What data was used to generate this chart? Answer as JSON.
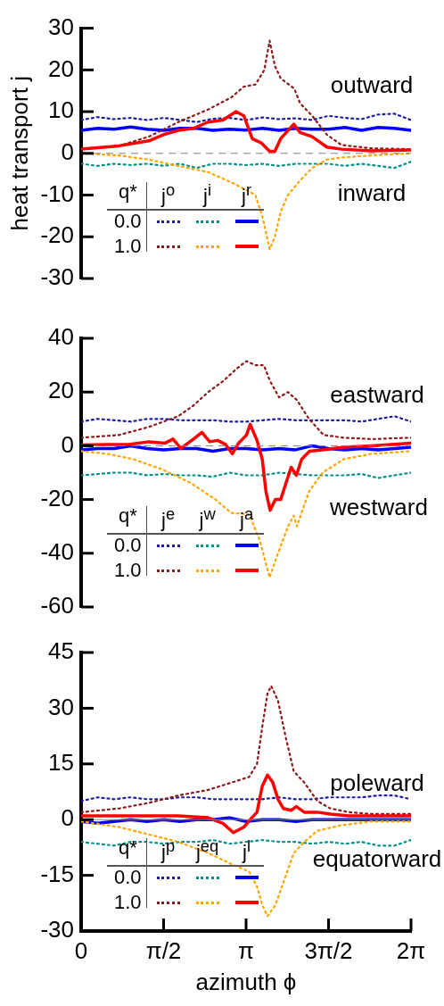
{
  "chart_data": [
    {
      "type": "line",
      "ylabel": "heat transport j",
      "legend_title": "q*",
      "tick_labels": "y",
      "xlim": [
        0,
        6.2832
      ],
      "ylim": [
        -30,
        30
      ],
      "yticks": [
        -30,
        -20,
        -10,
        0,
        10,
        20,
        30
      ],
      "x": [
        0,
        0.314,
        0.628,
        0.942,
        1.257,
        1.571,
        1.885,
        2.199,
        2.513,
        2.827,
        3.142,
        3.456,
        3.77,
        4.084,
        4.398,
        4.712,
        5.027,
        5.341,
        5.655,
        5.969,
        6.283
      ],
      "ref_lines": [
        {
          "axis": "y",
          "value": 0,
          "color": "#808080",
          "line_style": "dashed"
        }
      ],
      "annotations": [
        "outward",
        "inward",
        "j$^{o}$",
        "j$^{i}$",
        "j$^{r}$",
        "0.0",
        "1.0"
      ],
      "series": [
        {
          "color": "#1c1ca8",
          "line_style": "dotted",
          "values": [
            8,
            8.7,
            8.2,
            8.5,
            8,
            8.5,
            8,
            7.5,
            8.3,
            8.5,
            8,
            8.6,
            8.2,
            8.4,
            8,
            9,
            8.5,
            8.2,
            9.3,
            9.5,
            8
          ]
        },
        {
          "color": "#00908c",
          "line_style": "dotted",
          "values": [
            -2.5,
            -3,
            -2.5,
            -2.8,
            -2.5,
            -3,
            -2.5,
            -3.5,
            -2.5,
            -2.5,
            -2.8,
            -2.5,
            -3,
            -2.5,
            -2.5,
            -2.5,
            -3,
            -2.5,
            -3,
            -3.5,
            -2
          ]
        },
        {
          "color": "#0000ff",
          "line_style": "solid",
          "values": [
            5.5,
            6,
            5.8,
            6.3,
            5.8,
            5.5,
            6,
            6,
            5.5,
            5.8,
            5.6,
            6,
            5.5,
            6,
            5.8,
            5.8,
            6.2,
            5.5,
            6.2,
            6,
            5.5
          ]
        },
        {
          "color": "#8b1a1a",
          "line_style": "dotted",
          "x": [
            0,
            0.72,
            1.29,
            1.85,
            2.42,
            2.87,
            3.1,
            3.32,
            3.49,
            3.59,
            3.69,
            3.8,
            4.06,
            4.17,
            4.4,
            4.68,
            4.96,
            5.53,
            6.283
          ],
          "values": [
            1,
            1.8,
            4,
            7.5,
            10.5,
            13.5,
            16,
            16.5,
            20,
            27,
            21,
            18,
            15.5,
            12,
            9,
            4.5,
            2,
            1.2,
            1
          ]
        },
        {
          "color": "#ffa500",
          "line_style": "dotted",
          "x": [
            0,
            0.72,
            1.29,
            1.85,
            2.42,
            2.87,
            3.1,
            3.32,
            3.45,
            3.54,
            3.59,
            3.69,
            3.8,
            3.94,
            4.17,
            4.4,
            4.68,
            4.96,
            5.53,
            6.283
          ],
          "values": [
            0,
            -0.5,
            -1.5,
            -3,
            -4.5,
            -7,
            -8.5,
            -10,
            -15,
            -20,
            -23,
            -20,
            -14,
            -10,
            -6.5,
            -3.5,
            -1.5,
            -1,
            -0.5,
            0
          ]
        },
        {
          "color": "#ff0000",
          "line_style": "solid",
          "x": [
            0,
            0.72,
            1.29,
            1.57,
            1.85,
            2.14,
            2.42,
            2.7,
            2.95,
            3.1,
            3.26,
            3.43,
            3.59,
            3.69,
            3.8,
            3.94,
            4.05,
            4.17,
            4.4,
            4.68,
            4.96,
            5.53,
            6.283
          ],
          "values": [
            1,
            1.8,
            3,
            4.5,
            5.5,
            6,
            7.5,
            8,
            10,
            9,
            3.5,
            2.5,
            0.5,
            0.5,
            3.5,
            5.5,
            7,
            5,
            4,
            1.5,
            1,
            0.6,
            0.8
          ]
        }
      ]
    },
    {
      "type": "line",
      "legend_title": "q*",
      "tick_labels": "y",
      "xlim": [
        0,
        6.2832
      ],
      "ylim": [
        -60,
        40
      ],
      "yticks": [
        -60,
        -40,
        -20,
        0,
        20,
        40
      ],
      "x": [
        0,
        0.314,
        0.628,
        0.942,
        1.257,
        1.571,
        1.885,
        2.199,
        2.513,
        2.827,
        3.142,
        3.456,
        3.77,
        4.084,
        4.398,
        4.712,
        5.027,
        5.341,
        5.655,
        5.969,
        6.283
      ],
      "ref_lines": [
        {
          "axis": "y",
          "value": 0,
          "color": "#808080",
          "line_style": "dashed"
        }
      ],
      "annotations": [
        "eastward",
        "westward",
        "j$^{e}$",
        "j$^{w}$",
        "j$^{a}$",
        "0.0",
        "1.0"
      ],
      "series": [
        {
          "color": "#1c1ca8",
          "line_style": "dotted",
          "values": [
            9,
            10,
            9.5,
            9,
            10,
            10,
            9.5,
            9.5,
            9.5,
            9,
            9,
            9.5,
            10,
            9.5,
            9.5,
            9.5,
            9.5,
            9,
            10,
            11,
            9
          ]
        },
        {
          "color": "#00908c",
          "line_style": "dotted",
          "values": [
            -11,
            -10.5,
            -10,
            -10,
            -11,
            -10.5,
            -11,
            -11,
            -11.5,
            -10,
            -11,
            -11,
            -10,
            -10.5,
            -11,
            -11,
            -11,
            -10.5,
            -12,
            -11,
            -10
          ]
        },
        {
          "color": "#0000ff",
          "line_style": "solid",
          "values": [
            -1.5,
            -1,
            -1,
            0,
            -1,
            -1.5,
            -1,
            -1,
            -2,
            -1,
            -1,
            -1.5,
            -1,
            -1.5,
            0,
            -1,
            -1.5,
            -1,
            -1.5,
            -1,
            -0.5
          ]
        },
        {
          "color": "#8b1a1a",
          "line_style": "dotted",
          "x": [
            0,
            0.72,
            1.29,
            1.85,
            2.14,
            2.42,
            2.7,
            2.98,
            3.15,
            3.32,
            3.48,
            3.6,
            3.77,
            3.94,
            4.11,
            4.34,
            4.62,
            5.0,
            5.53,
            6.283
          ],
          "values": [
            3,
            4,
            7,
            11,
            15,
            20,
            24,
            29,
            31.5,
            30,
            30,
            24,
            18,
            20,
            17,
            10,
            4,
            3,
            2.5,
            3
          ]
        },
        {
          "color": "#ffa500",
          "line_style": "dotted",
          "x": [
            0,
            0.5,
            1.0,
            1.57,
            2.1,
            2.56,
            2.86,
            3.2,
            3.4,
            3.59,
            3.75,
            3.94,
            4.05,
            4.11,
            4.34,
            4.6,
            5.0,
            5.53,
            6.283
          ],
          "values": [
            -2,
            -3,
            -5,
            -9,
            -14,
            -20,
            -25,
            -25.5,
            -35,
            -49,
            -40,
            -30,
            -26,
            -30,
            -17,
            -10,
            -5,
            -3,
            -2
          ]
        },
        {
          "color": "#ff0000",
          "line_style": "solid",
          "x": [
            0,
            0.5,
            0.9,
            1.29,
            1.6,
            1.75,
            1.9,
            2.14,
            2.3,
            2.45,
            2.6,
            2.75,
            2.88,
            3.0,
            3.15,
            3.22,
            3.35,
            3.45,
            3.52,
            3.6,
            3.7,
            3.8,
            3.9,
            4.0,
            4.1,
            4.2,
            4.35,
            4.6,
            5.0,
            5.53,
            6.283
          ],
          "values": [
            0.3,
            0.5,
            0.5,
            1.5,
            1,
            2.5,
            -1,
            2.5,
            5,
            1.5,
            2,
            0.5,
            -3,
            1,
            4,
            8,
            2,
            -5,
            -17,
            -24,
            -20,
            -20,
            -14,
            -8,
            -11,
            -5,
            -2,
            -1.5,
            -0.5,
            0,
            1
          ]
        }
      ]
    },
    {
      "type": "line",
      "xlabel": "azimuth ϕ",
      "legend_title": "q*",
      "xlim": [
        0,
        6.2832
      ],
      "ylim": [
        -30,
        45
      ],
      "yticks": [
        -30,
        -15,
        0,
        15,
        30,
        45
      ],
      "xticks": [
        {
          "value": 0,
          "label": "0"
        },
        {
          "value": 1.5708,
          "label": "π/2"
        },
        {
          "value": 3.1416,
          "label": "π"
        },
        {
          "value": 4.7124,
          "label": "3π/2"
        },
        {
          "value": 6.2832,
          "label": "2π"
        }
      ],
      "x": [
        0,
        0.314,
        0.628,
        0.942,
        1.257,
        1.571,
        1.885,
        2.199,
        2.513,
        2.827,
        3.142,
        3.456,
        3.77,
        4.084,
        4.398,
        4.712,
        5.027,
        5.341,
        5.655,
        5.969,
        6.283
      ],
      "ref_lines": [
        {
          "axis": "y",
          "value": 0,
          "color": "#808080",
          "line_style": "solid"
        }
      ],
      "annotations": [
        "poleward",
        "equatorward",
        "j$^{p}$",
        "j$^{eq}$",
        "j$^{l}$",
        "0.0",
        "1.0"
      ],
      "series": [
        {
          "color": "#1c1ca8",
          "line_style": "dotted",
          "values": [
            5,
            6,
            5.5,
            6,
            5.5,
            5.5,
            6,
            6,
            5.5,
            5.5,
            5.5,
            5.5,
            6,
            5.5,
            5.5,
            6,
            6,
            6,
            6.5,
            6.5,
            5.5
          ]
        },
        {
          "color": "#00908c",
          "line_style": "dotted",
          "values": [
            -6,
            -6.5,
            -7,
            -6,
            -6,
            -6.5,
            -6,
            -6,
            -5.5,
            -6.5,
            -6,
            -5.5,
            -6,
            -6,
            -6.5,
            -6,
            -6.5,
            -6,
            -7,
            -7,
            -5.5
          ]
        },
        {
          "color": "#0000ff",
          "line_style": "solid",
          "values": [
            -0.5,
            -1,
            -0.5,
            0,
            -0.5,
            0,
            -0.5,
            0,
            0,
            0.5,
            -0.5,
            0,
            0,
            -0.5,
            0,
            0,
            0,
            0,
            0,
            0,
            0
          ]
        },
        {
          "color": "#8b1a1a",
          "line_style": "dotted",
          "x": [
            0,
            0.72,
            1.29,
            1.85,
            2.42,
            2.87,
            3.2,
            3.35,
            3.45,
            3.55,
            3.62,
            3.75,
            3.9,
            4.05,
            4.25,
            4.5,
            4.75,
            5.1,
            5.53,
            6.283
          ],
          "values": [
            2,
            3,
            4.5,
            6.5,
            8,
            10,
            11.5,
            15,
            25,
            34,
            36,
            32,
            22,
            13,
            10,
            5,
            3,
            2,
            1.5,
            1.5
          ]
        },
        {
          "color": "#ffa500",
          "line_style": "dotted",
          "x": [
            0,
            0.72,
            1.29,
            1.85,
            2.42,
            2.87,
            3.2,
            3.35,
            3.45,
            3.55,
            3.7,
            3.85,
            4.05,
            4.25,
            4.5,
            4.96,
            5.53,
            6.283
          ],
          "values": [
            -0.5,
            -2,
            -4,
            -6,
            -9,
            -12,
            -14,
            -18,
            -23,
            -26,
            -23,
            -17,
            -9,
            -6,
            -3,
            -1.5,
            -0.5,
            -0.5
          ]
        },
        {
          "color": "#ff0000",
          "line_style": "solid",
          "x": [
            0,
            0.72,
            1.29,
            1.85,
            2.42,
            2.7,
            2.9,
            3.1,
            3.25,
            3.35,
            3.45,
            3.55,
            3.65,
            3.75,
            3.85,
            4.0,
            4.1,
            4.25,
            4.5,
            4.75,
            5.1,
            6.283
          ],
          "values": [
            1,
            1,
            1,
            1,
            0.5,
            -1,
            -3.5,
            -2,
            0.5,
            2,
            9,
            12,
            10,
            5.5,
            3,
            2.5,
            3.5,
            2,
            2,
            1.5,
            1,
            1
          ]
        }
      ]
    }
  ]
}
